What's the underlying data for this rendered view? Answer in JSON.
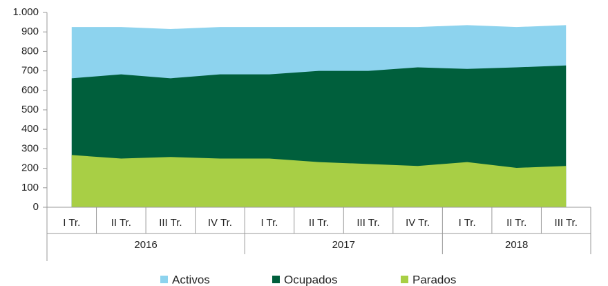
{
  "chart_data": {
    "type": "area",
    "stacked": false,
    "groups": [
      {
        "label": "2016",
        "categories": [
          "I Tr.",
          "II Tr.",
          "III Tr.",
          "IV Tr."
        ]
      },
      {
        "label": "2017",
        "categories": [
          "I Tr.",
          "II Tr.",
          "III Tr.",
          "IV Tr."
        ]
      },
      {
        "label": "2018",
        "categories": [
          "I Tr.",
          "II Tr.",
          "III Tr."
        ]
      }
    ],
    "series": [
      {
        "name": "Activos",
        "color": "#8dd3ee",
        "values": [
          925,
          925,
          915,
          925,
          925,
          925,
          925,
          925,
          935,
          925,
          935
        ]
      },
      {
        "name": "Ocupados",
        "color": "#005f3c",
        "values": [
          662,
          682,
          662,
          682,
          682,
          700,
          700,
          718,
          710,
          718,
          728
        ]
      },
      {
        "name": "Parados",
        "color": "#a8cf45",
        "values": [
          268,
          250,
          258,
          250,
          250,
          232,
          222,
          212,
          232,
          202,
          212
        ]
      }
    ],
    "ylim": [
      0,
      1000
    ],
    "yticks": [
      0,
      100,
      200,
      300,
      400,
      500,
      600,
      700,
      800,
      900,
      {
        "value": 1000,
        "label": "1.000"
      }
    ],
    "grid": false,
    "legend": "bottom"
  }
}
